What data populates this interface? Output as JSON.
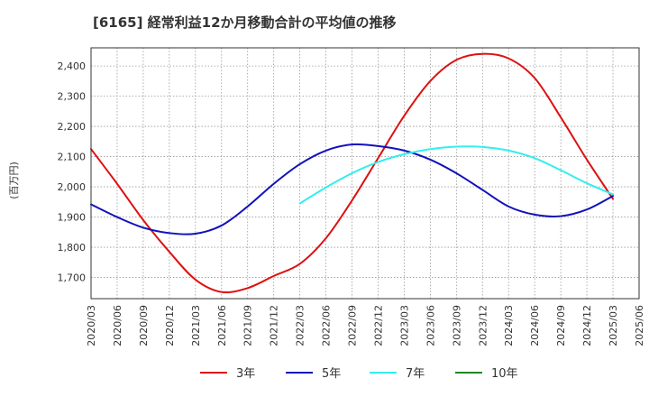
{
  "chart_data": {
    "type": "line",
    "title": "[6165]  経常利益12か月移動合計の平均値の推移",
    "ylabel": "(百万円)",
    "xlabel": "",
    "x_ticks": [
      "2020/03",
      "2020/06",
      "2020/09",
      "2020/12",
      "2021/03",
      "2021/06",
      "2021/09",
      "2021/12",
      "2022/03",
      "2022/06",
      "2022/09",
      "2022/12",
      "2023/03",
      "2023/06",
      "2023/09",
      "2023/12",
      "2024/03",
      "2024/06",
      "2024/09",
      "2024/12",
      "2025/03",
      "2025/06"
    ],
    "y_ticks": [
      1700,
      1800,
      1900,
      2000,
      2100,
      2200,
      2300,
      2400
    ],
    "y_tick_labels": [
      "1,700",
      "1,800",
      "1,900",
      "2,000",
      "2,100",
      "2,200",
      "2,300",
      "2,400"
    ],
    "ylim": [
      1630,
      2460
    ],
    "grid": true,
    "legend_position": "bottom",
    "series": [
      {
        "name": "3年",
        "color": "#dd1111",
        "points": [
          [
            "2020/03",
            2125
          ],
          [
            "2020/06",
            2010
          ],
          [
            "2020/09",
            1890
          ],
          [
            "2020/12",
            1785
          ],
          [
            "2021/03",
            1693
          ],
          [
            "2021/06",
            1652
          ],
          [
            "2021/09",
            1665
          ],
          [
            "2021/12",
            1705
          ],
          [
            "2022/03",
            1745
          ],
          [
            "2022/06",
            1830
          ],
          [
            "2022/09",
            1955
          ],
          [
            "2022/12",
            2095
          ],
          [
            "2023/03",
            2235
          ],
          [
            "2023/06",
            2350
          ],
          [
            "2023/09",
            2420
          ],
          [
            "2023/12",
            2440
          ],
          [
            "2024/03",
            2425
          ],
          [
            "2024/06",
            2360
          ],
          [
            "2024/09",
            2230
          ],
          [
            "2024/12",
            2090
          ],
          [
            "2025/03",
            1960
          ]
        ]
      },
      {
        "name": "5年",
        "color": "#1111bb",
        "points": [
          [
            "2020/03",
            1942
          ],
          [
            "2020/06",
            1900
          ],
          [
            "2020/09",
            1865
          ],
          [
            "2020/12",
            1847
          ],
          [
            "2021/03",
            1845
          ],
          [
            "2021/06",
            1872
          ],
          [
            "2021/09",
            1935
          ],
          [
            "2021/12",
            2010
          ],
          [
            "2022/03",
            2075
          ],
          [
            "2022/06",
            2120
          ],
          [
            "2022/09",
            2140
          ],
          [
            "2022/12",
            2135
          ],
          [
            "2023/03",
            2120
          ],
          [
            "2023/06",
            2090
          ],
          [
            "2023/09",
            2045
          ],
          [
            "2023/12",
            1990
          ],
          [
            "2024/03",
            1935
          ],
          [
            "2024/06",
            1908
          ],
          [
            "2024/09",
            1903
          ],
          [
            "2024/12",
            1925
          ],
          [
            "2025/03",
            1970
          ]
        ]
      },
      {
        "name": "7年",
        "color": "#33eeee",
        "points": [
          [
            "2022/03",
            1945
          ],
          [
            "2022/06",
            1998
          ],
          [
            "2022/09",
            2045
          ],
          [
            "2022/12",
            2082
          ],
          [
            "2023/03",
            2108
          ],
          [
            "2023/06",
            2125
          ],
          [
            "2023/09",
            2133
          ],
          [
            "2023/12",
            2132
          ],
          [
            "2024/03",
            2120
          ],
          [
            "2024/06",
            2095
          ],
          [
            "2024/09",
            2055
          ],
          [
            "2024/12",
            2012
          ],
          [
            "2025/03",
            1975
          ]
        ]
      },
      {
        "name": "10年",
        "color": "#228822",
        "points": []
      }
    ]
  }
}
